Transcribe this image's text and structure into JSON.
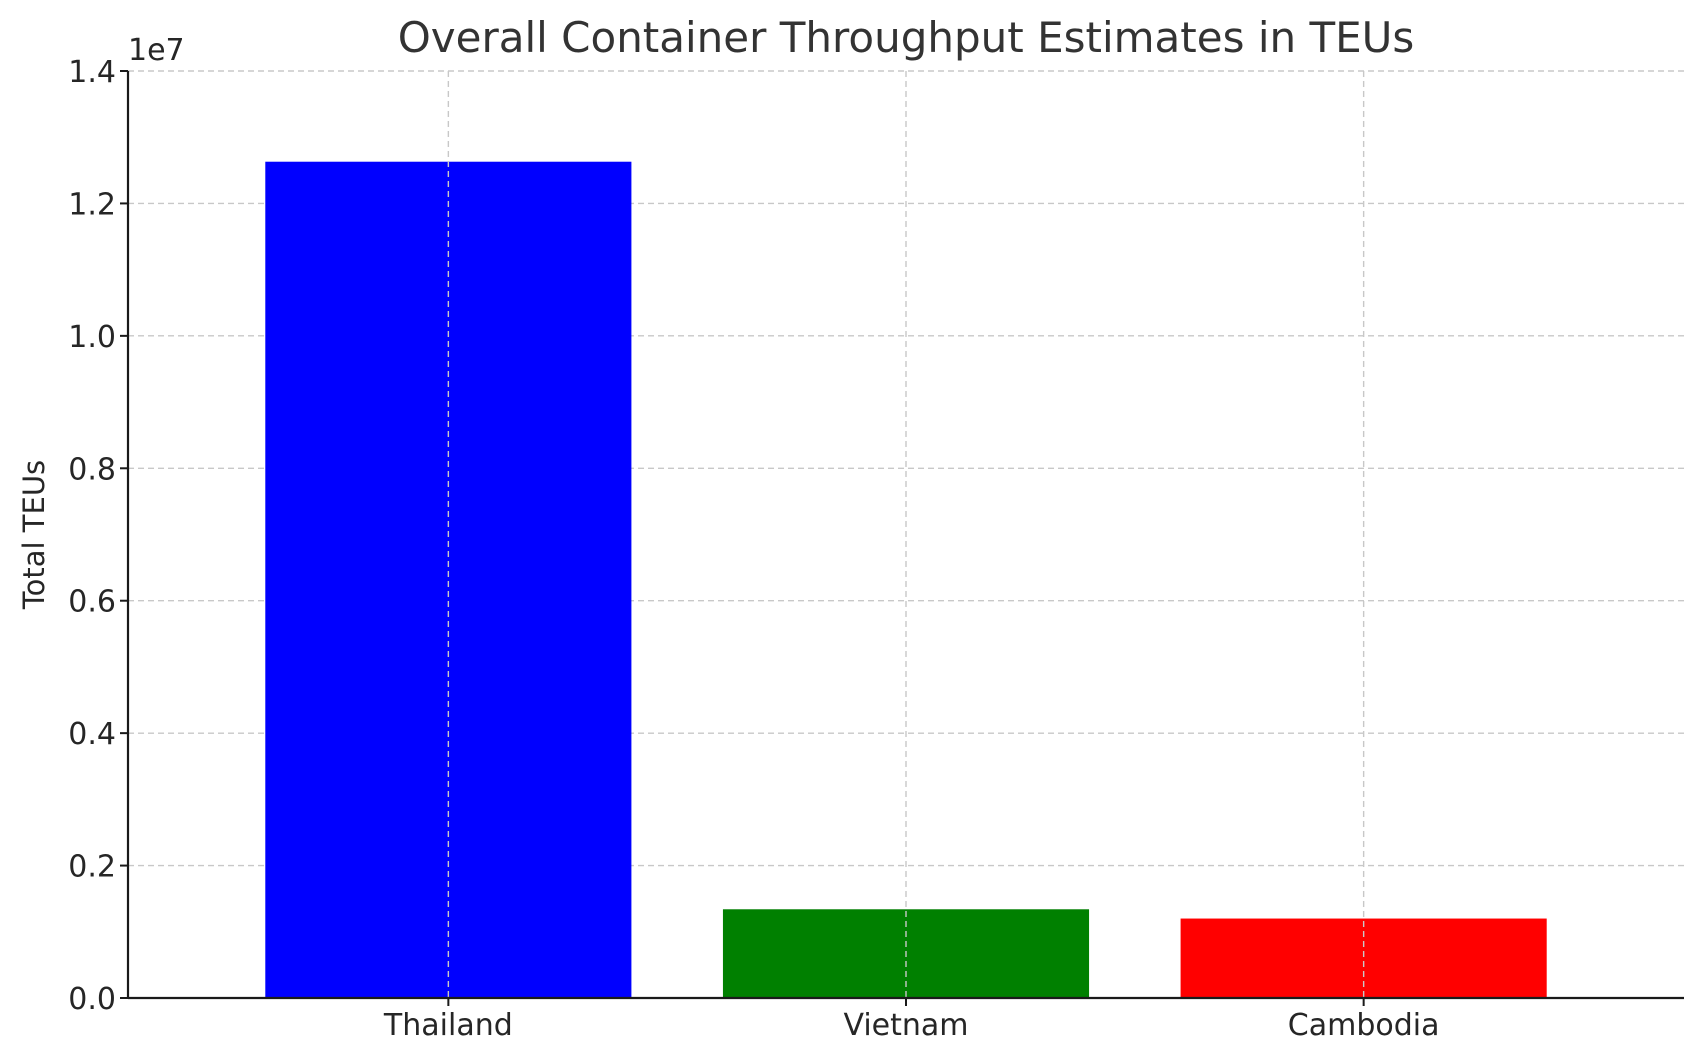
{
  "chart_data": {
    "type": "bar",
    "title": "Overall Container Throughput Estimates in TEUs",
    "xlabel": "",
    "ylabel": "Total TEUs",
    "y_offset_label": "1e7",
    "y_scale_factor": 10000000,
    "categories": [
      "Thailand",
      "Vietnam",
      "Cambodia"
    ],
    "values": [
      12630000,
      1340000,
      1200000
    ],
    "colors": [
      "#0000ff",
      "#008000",
      "#ff0000"
    ],
    "ylim": [
      0,
      14000000
    ],
    "yticks": [
      0,
      2000000,
      4000000,
      6000000,
      8000000,
      10000000,
      12000000,
      14000000
    ],
    "ytick_labels": [
      "0.0",
      "0.2",
      "0.4",
      "0.6",
      "0.8",
      "1.0",
      "1.2",
      "1.4"
    ],
    "grid": true,
    "legend": "none"
  }
}
